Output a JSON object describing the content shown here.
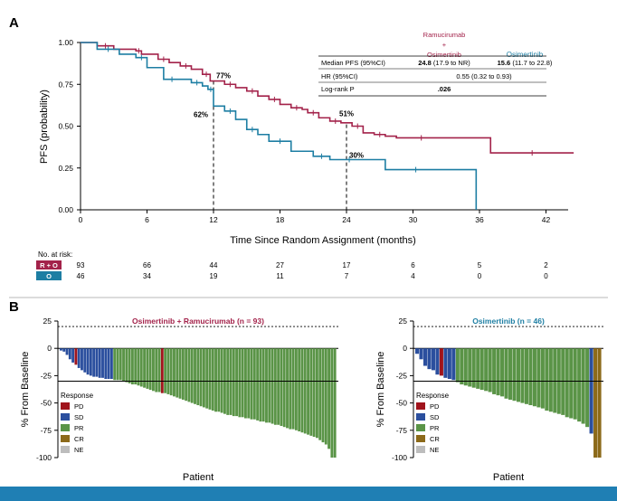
{
  "colors": {
    "ro": "#a3224a",
    "o": "#1d7ea3",
    "pd": "#a0141c",
    "sd": "#2b4f9e",
    "pr": "#5a9447",
    "cr": "#8c6a1a",
    "ne": "#bdbdbd",
    "footer": "#1f7fb4"
  },
  "chart_data": [
    {
      "type": "line",
      "panel": "A",
      "xlabel": "Time Since Random Assignment (months)",
      "ylabel": "PFS (probability)",
      "xlim": [
        0,
        44
      ],
      "ylim": [
        0,
        1
      ],
      "xticks": [
        "0",
        "6",
        "12",
        "18",
        "24",
        "30",
        "36",
        "42"
      ],
      "yticks": [
        "0.00",
        "0.25",
        "0.50",
        "0.75",
        "1.00"
      ],
      "series": [
        {
          "name": "Ramucirumab + Osimertinib",
          "short": "R + O",
          "color": "#a3224a",
          "x": [
            0,
            1.5,
            3,
            5,
            5.5,
            7,
            8,
            9,
            10,
            11,
            11.7,
            13,
            14,
            15,
            16,
            17,
            18,
            19,
            20,
            20.5,
            21.5,
            22.5,
            23.5,
            24.5,
            25.5,
            26.5,
            27.5,
            28.5,
            33,
            37,
            44.5
          ],
          "y": [
            1.0,
            0.98,
            0.96,
            0.95,
            0.93,
            0.9,
            0.88,
            0.86,
            0.84,
            0.81,
            0.77,
            0.75,
            0.73,
            0.71,
            0.68,
            0.66,
            0.63,
            0.61,
            0.6,
            0.58,
            0.55,
            0.53,
            0.52,
            0.5,
            0.46,
            0.45,
            0.44,
            0.43,
            0.43,
            0.34,
            0.34
          ]
        },
        {
          "name": "Osimertinib",
          "short": "O",
          "color": "#1d7ea3",
          "x": [
            0,
            1.5,
            3.5,
            5,
            6,
            7.5,
            9,
            10,
            11,
            11.5,
            12,
            13,
            14,
            15,
            16,
            17,
            19,
            21,
            22.5,
            24,
            24.5,
            27.5,
            33,
            35.7
          ],
          "y": [
            1.0,
            0.96,
            0.93,
            0.91,
            0.85,
            0.78,
            0.78,
            0.76,
            0.74,
            0.72,
            0.62,
            0.59,
            0.54,
            0.48,
            0.45,
            0.41,
            0.35,
            0.32,
            0.3,
            0.3,
            0.3,
            0.24,
            0.24,
            0.0
          ]
        }
      ],
      "annotations": [
        {
          "text": "77%",
          "x": 12,
          "y": 0.77
        },
        {
          "text": "62%",
          "x": 12,
          "y": 0.62
        },
        {
          "text": "51%",
          "x": 24,
          "y": 0.51
        },
        {
          "text": "30%",
          "x": 24,
          "y": 0.3
        }
      ],
      "stats_table": {
        "headers": [
          "",
          "Ramucirumab\n+\nOsimertinib",
          "Osimertinib"
        ],
        "rows": [
          [
            "Median PFS (95%CI)",
            "24.8 (17.9 to NR)",
            "15.6 (11.7 to 22.8)"
          ],
          [
            "HR (95%CI)",
            "0.55 (0.32 to 0.93)",
            ""
          ],
          [
            "Log-rank P",
            ".026",
            ""
          ]
        ]
      },
      "at_risk": {
        "title": "No. at risk:",
        "rows": [
          {
            "label": "R + O",
            "values": [
              "93",
              "66",
              "44",
              "27",
              "17",
              "6",
              "5",
              "2"
            ]
          },
          {
            "label": "O",
            "values": [
              "46",
              "34",
              "19",
              "11",
              "7",
              "4",
              "0",
              "0"
            ]
          }
        ]
      }
    },
    {
      "type": "bar",
      "panel": "B",
      "subtype": "waterfall",
      "title": "Osimertinib + Ramucirumab (n = 93)",
      "xlabel": "Patient",
      "ylabel": "% From Baseline",
      "ylim": [
        -100,
        25
      ],
      "yticks": [
        "25",
        "0",
        "-25",
        "-50",
        "-75",
        "-100"
      ],
      "reference_lines": [
        20,
        -30
      ],
      "values": [
        -2,
        -3,
        -6,
        -10,
        -13,
        -15,
        -18,
        -20,
        -22,
        -24,
        -25,
        -26,
        -26,
        -27,
        -27,
        -28,
        -28,
        -28,
        -29,
        -29,
        -29,
        -30,
        -31,
        -32,
        -33,
        -33,
        -34,
        -35,
        -36,
        -37,
        -38,
        -39,
        -40,
        -40,
        -41,
        -41,
        -42,
        -43,
        -44,
        -45,
        -46,
        -47,
        -48,
        -49,
        -50,
        -51,
        -52,
        -53,
        -54,
        -55,
        -56,
        -57,
        -58,
        -58,
        -59,
        -60,
        -61,
        -61,
        -62,
        -62,
        -63,
        -63,
        -64,
        -64,
        -65,
        -65,
        -66,
        -67,
        -67,
        -68,
        -68,
        -69,
        -70,
        -70,
        -71,
        -72,
        -73,
        -74,
        -74,
        -75,
        -76,
        -77,
        -78,
        -79,
        -80,
        -81,
        -82,
        -84,
        -86,
        -88,
        -92,
        -100,
        -100
      ],
      "responses": [
        "SD",
        "SD",
        "SD",
        "SD",
        "SD",
        "PD",
        "SD",
        "SD",
        "SD",
        "SD",
        "SD",
        "SD",
        "SD",
        "SD",
        "SD",
        "SD",
        "SD",
        "SD",
        "PR",
        "PR",
        "PR",
        "PR",
        "PR",
        "PR",
        "PR",
        "PR",
        "PR",
        "PR",
        "PR",
        "PR",
        "PR",
        "PR",
        "PR",
        "PR",
        "PD",
        "PR",
        "PR",
        "PR",
        "PR",
        "PR",
        "PR",
        "PR",
        "PR",
        "PR",
        "PR",
        "PR",
        "PR",
        "PR",
        "PR",
        "PR",
        "PR",
        "PR",
        "PR",
        "PR",
        "PR",
        "PR",
        "PR",
        "PR",
        "PR",
        "PR",
        "PR",
        "PR",
        "PR",
        "PR",
        "PR",
        "PR",
        "PR",
        "PR",
        "PR",
        "PR",
        "PR",
        "PR",
        "PR",
        "PR",
        "PR",
        "PR",
        "PR",
        "PR",
        "PR",
        "PR",
        "PR",
        "PR",
        "PR",
        "PR",
        "PR",
        "PR",
        "PR",
        "PR",
        "PR",
        "PR",
        "PR",
        "PR",
        "PR"
      ],
      "legend": {
        "title": "Response",
        "items": [
          "PD",
          "SD",
          "PR",
          "CR",
          "NE"
        ]
      }
    },
    {
      "type": "bar",
      "panel": "B",
      "subtype": "waterfall",
      "title": "Osimertinib (n = 46)",
      "xlabel": "Patient",
      "ylabel": "% From Baseline",
      "ylim": [
        -100,
        25
      ],
      "yticks": [
        "25",
        "0",
        "-25",
        "-50",
        "-75",
        "-100"
      ],
      "reference_lines": [
        20,
        -30
      ],
      "values": [
        -5,
        -10,
        -16,
        -19,
        -20,
        -24,
        -25,
        -27,
        -28,
        -29,
        -31,
        -33,
        -34,
        -35,
        -36,
        -37,
        -38,
        -39,
        -40,
        -42,
        -43,
        -44,
        -46,
        -47,
        -48,
        -49,
        -50,
        -51,
        -52,
        -53,
        -54,
        -55,
        -57,
        -58,
        -59,
        -60,
        -61,
        -63,
        -64,
        -65,
        -67,
        -69,
        -72,
        -78,
        -100,
        -100
      ],
      "responses": [
        "SD",
        "SD",
        "SD",
        "SD",
        "SD",
        "SD",
        "PD",
        "SD",
        "SD",
        "SD",
        "PR",
        "PR",
        "PR",
        "PR",
        "PR",
        "PR",
        "PR",
        "PR",
        "PR",
        "PR",
        "PR",
        "PR",
        "PR",
        "PR",
        "PR",
        "PR",
        "PR",
        "PR",
        "PR",
        "PR",
        "PR",
        "PR",
        "PR",
        "PR",
        "PR",
        "PR",
        "PR",
        "PR",
        "PR",
        "PR",
        "PR",
        "PR",
        "PR",
        "SD",
        "CR",
        "CR"
      ],
      "legend": {
        "title": "Response",
        "items": [
          "PD",
          "SD",
          "PR",
          "CR",
          "NE"
        ]
      }
    }
  ],
  "labels": {
    "panel_a": "A",
    "panel_b": "B"
  }
}
